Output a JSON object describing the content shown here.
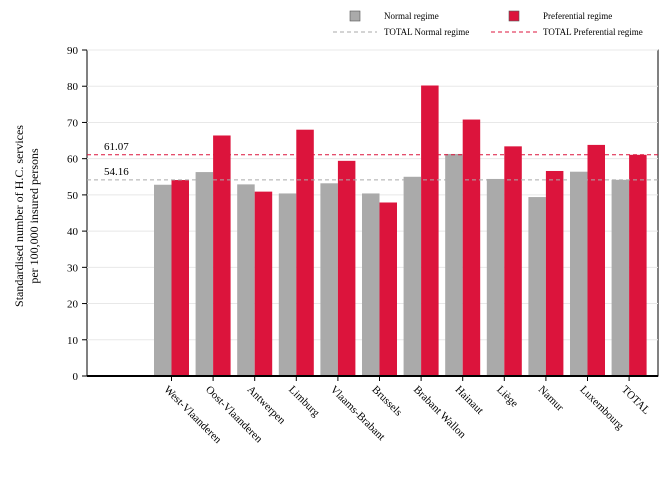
{
  "chart_data": {
    "type": "bar",
    "ylabel_lines": [
      "Standardised number of H.C. services",
      "per 100,000 insured persons"
    ],
    "ylim": [
      0,
      90
    ],
    "yticks": [
      0,
      10,
      20,
      30,
      40,
      50,
      60,
      70,
      80,
      90
    ],
    "categories": [
      "West-Vlaanderen",
      "Oost-Vlaanderen",
      "Antwerpen",
      "Limburg",
      "Vlaams-Brabant",
      "Brussels",
      "Brabant Wallon",
      "Hainaut",
      "Liège",
      "Namur",
      "Luxembourg",
      "TOTAL"
    ],
    "series": [
      {
        "name": "Normal regime",
        "color": "#aaaaaa",
        "values": [
          52.8,
          56.3,
          52.9,
          50.4,
          53.2,
          50.4,
          55.0,
          61.3,
          54.4,
          49.4,
          56.4,
          54.16
        ]
      },
      {
        "name": "Preferential regime",
        "color": "#dc143c",
        "values": [
          54.1,
          66.4,
          50.9,
          68.0,
          59.4,
          47.9,
          80.2,
          70.8,
          63.4,
          56.6,
          63.8,
          61.07
        ]
      }
    ],
    "reference_lines": [
      {
        "name": "TOTAL Normal regime",
        "value": 54.16,
        "label": "54.16",
        "color": "#aaaaaa"
      },
      {
        "name": "TOTAL Preferential regime",
        "value": 61.07,
        "label": "61.07",
        "color": "#dc143c"
      }
    ],
    "grid": true,
    "legend_position": "top-right"
  }
}
